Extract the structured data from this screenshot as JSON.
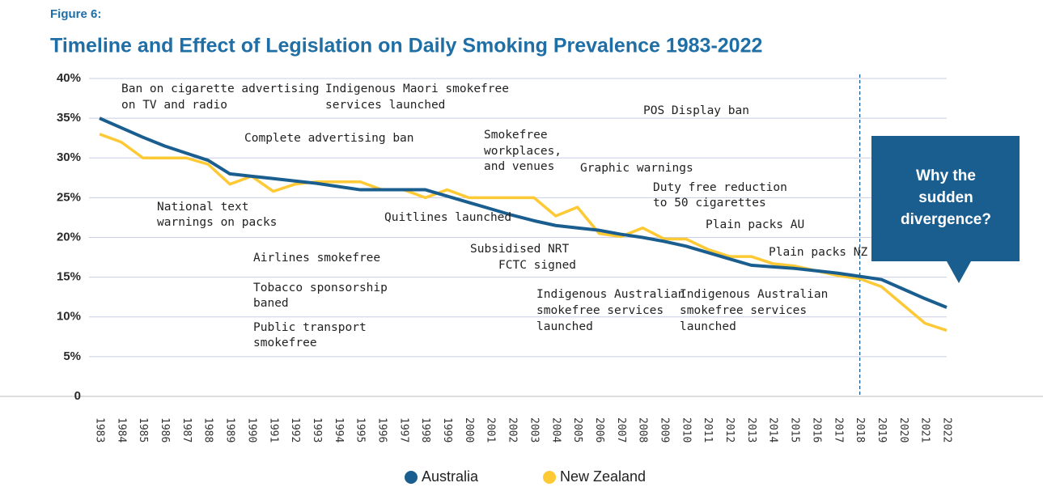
{
  "chart_data": {
    "type": "line",
    "supertitle": "Figure 6:",
    "title": "Timeline and Effect of Legislation on Daily Smoking Prevalence 1983-2022",
    "categories": [
      "1983",
      "1984",
      "1985",
      "1986",
      "1987",
      "1988",
      "1989",
      "1990",
      "1991",
      "1992",
      "1993",
      "1994",
      "1995",
      "1996",
      "1997",
      "1998",
      "1999",
      "2000",
      "2001",
      "2002",
      "2003",
      "2004",
      "2005",
      "2006",
      "2007",
      "2008",
      "2009",
      "2010",
      "2011",
      "2012",
      "2013",
      "2014",
      "2015",
      "2016",
      "2017",
      "2018",
      "2019",
      "2020",
      "2021",
      "2022"
    ],
    "series": [
      {
        "name": "Australia",
        "color": "#1a5e8f",
        "values": [
          35,
          33.8,
          32.6,
          31.5,
          30.6,
          29.7,
          28,
          27.7,
          27.4,
          27.1,
          26.8,
          26.4,
          26,
          26,
          26,
          26,
          25.2,
          24.4,
          23.6,
          22.8,
          22.1,
          21.5,
          21.2,
          20.9,
          20.4,
          20,
          19.5,
          18.9,
          18.1,
          17.3,
          16.5,
          16.3,
          16.1,
          15.8,
          15.5,
          15.1,
          14.7,
          13.5,
          12.3,
          11.2
        ]
      },
      {
        "name": "New Zealand",
        "color": "#fdc934",
        "values": [
          33,
          32,
          30,
          30,
          30,
          29.2,
          26.7,
          27.7,
          25.8,
          26.7,
          27,
          27,
          27,
          26,
          26,
          25,
          26,
          25,
          25,
          25,
          25,
          22.7,
          23.8,
          20.5,
          20.1,
          21.2,
          19.8,
          19.8,
          18.5,
          17.6,
          17.6,
          16.7,
          16.4,
          15.8,
          15.2,
          14.8,
          13.8,
          11.5,
          9.2,
          8.3
        ]
      }
    ],
    "ylim": [
      0,
      40
    ],
    "yticks": [
      0,
      {
        "value": 5,
        "label": "5%"
      },
      {
        "value": 10,
        "label": "10%"
      },
      {
        "value": 15,
        "label": "15%"
      },
      {
        "value": 20,
        "label": "20%"
      },
      {
        "value": 25,
        "label": "25%"
      },
      {
        "value": 30,
        "label": "30%"
      },
      {
        "value": 35,
        "label": "35%"
      },
      {
        "value": 40,
        "label": "40%"
      }
    ],
    "grid": true,
    "legend": "bottom",
    "annotations": [
      "Ban on cigarette advertising",
      "on TV and radio",
      "Indigenous Maori smokefree",
      "services launched",
      "POS Display ban",
      "Complete advertising ban",
      "Smokefree",
      "workplaces,",
      "and venues",
      "Graphic warnings",
      "Duty free reduction",
      "to 50 cigarettes",
      "National text",
      "warnings on packs",
      "Quitlines launched",
      "Plain packs AU",
      "Subsidised NRT",
      "FCTC signed",
      "Airlines smokefree",
      "Plain packs NZ",
      "Tobacco sponsorship",
      "baned",
      "Indigenous Australian",
      "smokefree services",
      "launched",
      "Indigenous Australian",
      "smokefree services",
      "launched",
      "Public transport",
      "smokefree"
    ],
    "callout": [
      "Why the",
      "sudden",
      "divergence?"
    ]
  }
}
